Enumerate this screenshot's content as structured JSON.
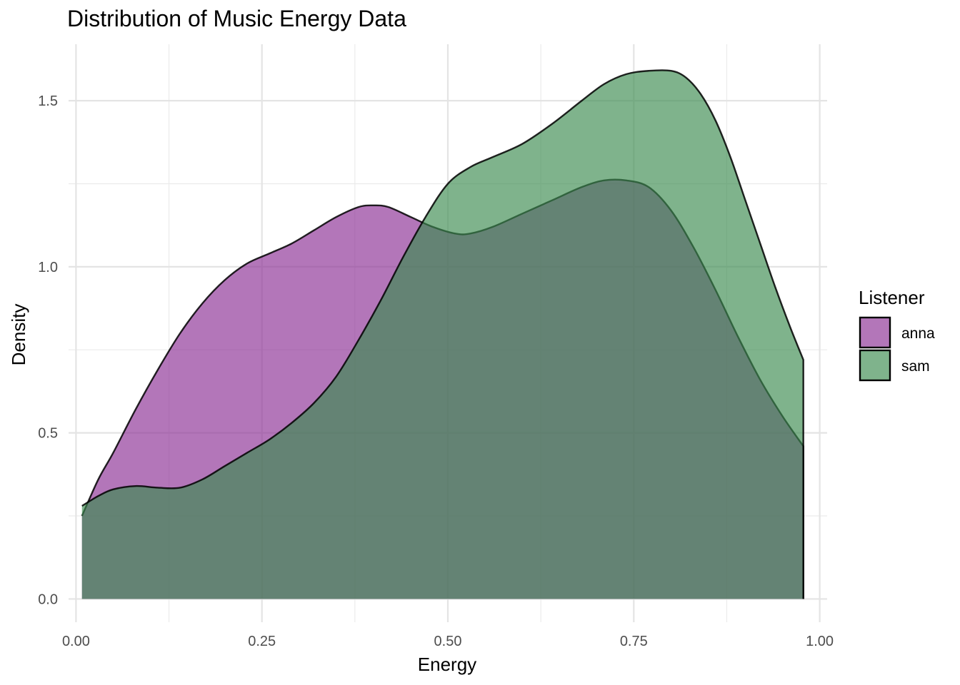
{
  "chart_data": {
    "type": "area",
    "subtype": "density",
    "title": "Distribution of Music Energy Data",
    "xlabel": "Energy",
    "ylabel": "Density",
    "xlim": [
      -0.01,
      1.01
    ],
    "ylim": [
      -0.07,
      1.67
    ],
    "x_ticks": [
      {
        "value": 0.0,
        "label": "0.00"
      },
      {
        "value": 0.25,
        "label": "0.25"
      },
      {
        "value": 0.5,
        "label": "0.50"
      },
      {
        "value": 0.75,
        "label": "0.75"
      },
      {
        "value": 1.0,
        "label": "1.00"
      }
    ],
    "y_ticks": [
      {
        "value": 0.0,
        "label": "0.0"
      },
      {
        "value": 0.5,
        "label": "0.5"
      },
      {
        "value": 1.0,
        "label": "1.0"
      },
      {
        "value": 1.5,
        "label": "1.5"
      }
    ],
    "grid": true,
    "legend": {
      "title": "Listener",
      "position": "right"
    },
    "series": [
      {
        "name": "anna",
        "color": "#8b2d94",
        "x": [
          0.008,
          0.03,
          0.05,
          0.08,
          0.11,
          0.14,
          0.17,
          0.2,
          0.23,
          0.26,
          0.29,
          0.32,
          0.35,
          0.38,
          0.4,
          0.42,
          0.45,
          0.48,
          0.51,
          0.53,
          0.56,
          0.6,
          0.64,
          0.68,
          0.71,
          0.74,
          0.77,
          0.8,
          0.83,
          0.86,
          0.89,
          0.92,
          0.95,
          0.978
        ],
        "y": [
          0.25,
          0.36,
          0.44,
          0.57,
          0.69,
          0.8,
          0.89,
          0.96,
          1.01,
          1.04,
          1.07,
          1.11,
          1.15,
          1.18,
          1.185,
          1.18,
          1.15,
          1.12,
          1.1,
          1.1,
          1.12,
          1.16,
          1.2,
          1.24,
          1.26,
          1.26,
          1.24,
          1.17,
          1.06,
          0.93,
          0.79,
          0.66,
          0.55,
          0.46
        ]
      },
      {
        "name": "sam",
        "color": "#3a8a4f",
        "x": [
          0.008,
          0.03,
          0.05,
          0.08,
          0.11,
          0.14,
          0.17,
          0.2,
          0.23,
          0.26,
          0.29,
          0.32,
          0.35,
          0.38,
          0.41,
          0.44,
          0.47,
          0.5,
          0.53,
          0.56,
          0.6,
          0.64,
          0.68,
          0.71,
          0.74,
          0.77,
          0.8,
          0.82,
          0.84,
          0.86,
          0.88,
          0.9,
          0.92,
          0.94,
          0.96,
          0.978
        ],
        "y": [
          0.28,
          0.31,
          0.33,
          0.34,
          0.335,
          0.335,
          0.36,
          0.4,
          0.44,
          0.48,
          0.53,
          0.59,
          0.67,
          0.78,
          0.9,
          1.03,
          1.15,
          1.25,
          1.3,
          1.33,
          1.37,
          1.43,
          1.5,
          1.55,
          1.58,
          1.59,
          1.59,
          1.57,
          1.52,
          1.44,
          1.33,
          1.2,
          1.07,
          0.94,
          0.82,
          0.72
        ]
      }
    ]
  }
}
